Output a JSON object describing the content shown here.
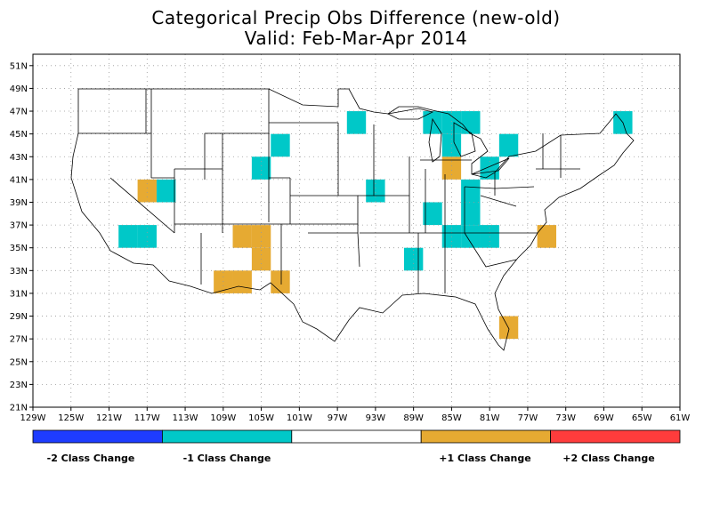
{
  "title": "Categorical Precip Obs Difference (new-old)",
  "subtitle": "Valid: Feb-Mar-Apr 2014",
  "map": {
    "lon_range": [
      -129,
      -61
    ],
    "lat_range": [
      21,
      52
    ],
    "grid_step_deg": 2,
    "lat_labels": [
      "21N",
      "23N",
      "25N",
      "27N",
      "29N",
      "31N",
      "33N",
      "35N",
      "37N",
      "39N",
      "41N",
      "43N",
      "45N",
      "47N",
      "49N",
      "51N"
    ],
    "lon_labels": [
      "129W",
      "125W",
      "121W",
      "117W",
      "113W",
      "109W",
      "105W",
      "101W",
      "97W",
      "93W",
      "89W",
      "85W",
      "81W",
      "77W",
      "73W",
      "69W",
      "65W",
      "61W"
    ],
    "colors": {
      "minus1": "#00c8c8",
      "plus1": "#e6aa32"
    },
    "cells": [
      {
        "lon": -120,
        "lat": 35,
        "w": 2,
        "cat": -1
      },
      {
        "lon": -118,
        "lat": 35,
        "w": 2,
        "cat": -1
      },
      {
        "lon": -118,
        "lat": 39,
        "w": 2,
        "cat": 1
      },
      {
        "lon": -116,
        "lat": 39,
        "w": 2,
        "cat": -1
      },
      {
        "lon": -108,
        "lat": 35,
        "w": 2,
        "cat": 1
      },
      {
        "lon": -106,
        "lat": 35,
        "w": 2,
        "cat": 1
      },
      {
        "lon": -106,
        "lat": 33,
        "w": 2,
        "cat": 1
      },
      {
        "lon": -110,
        "lat": 31,
        "w": 2,
        "cat": 1
      },
      {
        "lon": -108,
        "lat": 31,
        "w": 2,
        "cat": 1
      },
      {
        "lon": -104,
        "lat": 31,
        "w": 2,
        "cat": 1
      },
      {
        "lon": -106,
        "lat": 41,
        "w": 2,
        "cat": -1
      },
      {
        "lon": -104,
        "lat": 43,
        "w": 2,
        "cat": -1
      },
      {
        "lon": -96,
        "lat": 45,
        "w": 2,
        "cat": -1
      },
      {
        "lon": -94,
        "lat": 39,
        "w": 2,
        "cat": -1
      },
      {
        "lon": -90,
        "lat": 33,
        "w": 2,
        "cat": -1
      },
      {
        "lon": -88,
        "lat": 37,
        "w": 2,
        "cat": -1
      },
      {
        "lon": -86,
        "lat": 35,
        "w": 2,
        "cat": -1
      },
      {
        "lon": -84,
        "lat": 35,
        "w": 2,
        "cat": -1
      },
      {
        "lon": -84,
        "lat": 37,
        "w": 2,
        "cat": -1
      },
      {
        "lon": -84,
        "lat": 39,
        "w": 2,
        "cat": -1
      },
      {
        "lon": -82,
        "lat": 35,
        "w": 2,
        "cat": -1
      },
      {
        "lon": -82,
        "lat": 41,
        "w": 2,
        "cat": -1
      },
      {
        "lon": -86,
        "lat": 41,
        "w": 2,
        "cat": 1
      },
      {
        "lon": -86,
        "lat": 43,
        "w": 2,
        "cat": -1
      },
      {
        "lon": -88,
        "lat": 45,
        "w": 2,
        "cat": -1
      },
      {
        "lon": -86,
        "lat": 45,
        "w": 2,
        "cat": -1
      },
      {
        "lon": -84,
        "lat": 45,
        "w": 2,
        "cat": -1
      },
      {
        "lon": -80,
        "lat": 43,
        "w": 2,
        "cat": -1
      },
      {
        "lon": -76,
        "lat": 35,
        "w": 2,
        "cat": 1
      },
      {
        "lon": -80,
        "lat": 27,
        "w": 2,
        "cat": 1
      },
      {
        "lon": -68,
        "lat": 45,
        "w": 2,
        "cat": -1
      }
    ]
  },
  "colorbar": {
    "segments": [
      {
        "color": "#1e3cff"
      },
      {
        "color": "#00c8c8"
      },
      {
        "color": "#ffffff"
      },
      {
        "color": "#e6aa32"
      },
      {
        "color": "#ff3c3c"
      }
    ],
    "labels": [
      "-2 Class Change",
      "-1 Class Change",
      "+1 Class Change",
      "+2 Class Change"
    ]
  }
}
